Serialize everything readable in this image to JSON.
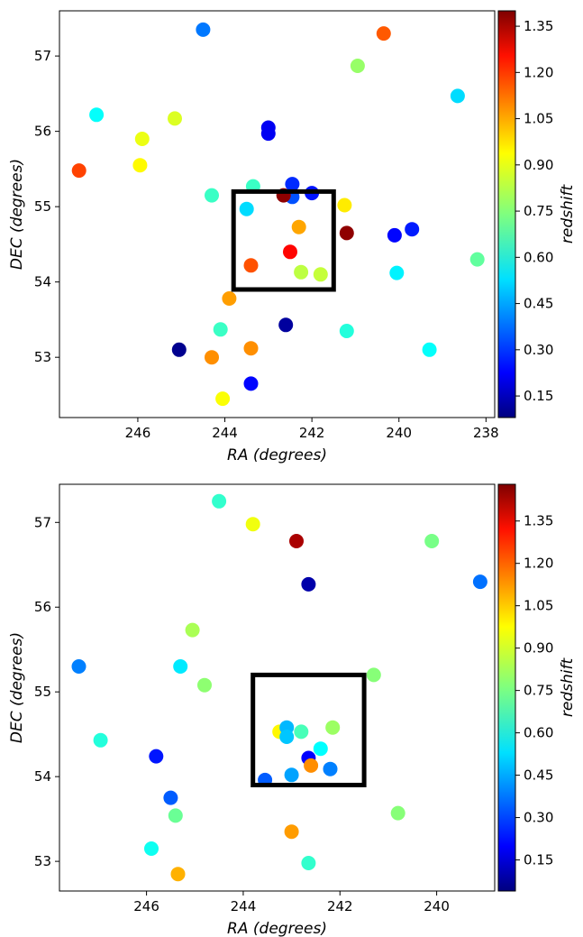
{
  "chart_data": [
    {
      "type": "scatter",
      "xlabel_var": "RA",
      "xlabel_unit": "(degrees)",
      "ylabel_var": "DEC",
      "ylabel_unit": "(degrees)",
      "colorbar_label": "redshift",
      "colormap": "jet",
      "clim": [
        0.08,
        1.4
      ],
      "colorbar_ticks": [
        "0.15",
        "0.30",
        "0.45",
        "0.60",
        "0.75",
        "0.90",
        "1.05",
        "1.20",
        "1.35"
      ],
      "xlim": [
        247.8,
        237.8
      ],
      "ylim": [
        52.2,
        57.6
      ],
      "x_ticks": [
        "246",
        "244",
        "242",
        "240",
        "238"
      ],
      "y_ticks": [
        "53",
        "54",
        "55",
        "56",
        "57"
      ],
      "grid": false,
      "box": {
        "ra": [
          241.5,
          243.8
        ],
        "dec": [
          53.9,
          55.2
        ]
      },
      "points": [
        {
          "ra": 244.5,
          "dec": 57.35,
          "z": 0.4
        },
        {
          "ra": 240.35,
          "dec": 57.3,
          "z": 1.12
        },
        {
          "ra": 240.95,
          "dec": 56.87,
          "z": 0.77
        },
        {
          "ra": 238.65,
          "dec": 56.47,
          "z": 0.53
        },
        {
          "ra": 246.95,
          "dec": 56.22,
          "z": 0.58
        },
        {
          "ra": 245.15,
          "dec": 56.17,
          "z": 0.86
        },
        {
          "ra": 245.9,
          "dec": 55.9,
          "z": 0.88
        },
        {
          "ra": 243.0,
          "dec": 56.05,
          "z": 0.23
        },
        {
          "ra": 243.0,
          "dec": 55.97,
          "z": 0.23
        },
        {
          "ra": 245.95,
          "dec": 55.55,
          "z": 0.91
        },
        {
          "ra": 247.35,
          "dec": 55.48,
          "z": 1.15
        },
        {
          "ra": 244.3,
          "dec": 55.15,
          "z": 0.65
        },
        {
          "ra": 243.35,
          "dec": 55.27,
          "z": 0.65
        },
        {
          "ra": 242.45,
          "dec": 55.3,
          "z": 0.3
        },
        {
          "ra": 242.45,
          "dec": 55.13,
          "z": 0.35
        },
        {
          "ra": 242.65,
          "dec": 55.15,
          "z": 1.38
        },
        {
          "ra": 242.0,
          "dec": 55.18,
          "z": 0.27
        },
        {
          "ra": 243.5,
          "dec": 54.97,
          "z": 0.53
        },
        {
          "ra": 242.3,
          "dec": 54.73,
          "z": 1.02
        },
        {
          "ra": 241.25,
          "dec": 55.02,
          "z": 0.93
        },
        {
          "ra": 241.2,
          "dec": 54.65,
          "z": 1.38
        },
        {
          "ra": 240.1,
          "dec": 54.62,
          "z": 0.25
        },
        {
          "ra": 239.7,
          "dec": 54.7,
          "z": 0.28
        },
        {
          "ra": 242.5,
          "dec": 54.4,
          "z": 1.23
        },
        {
          "ra": 243.4,
          "dec": 54.22,
          "z": 1.13
        },
        {
          "ra": 242.25,
          "dec": 54.13,
          "z": 0.82
        },
        {
          "ra": 241.8,
          "dec": 54.1,
          "z": 0.83
        },
        {
          "ra": 240.05,
          "dec": 54.12,
          "z": 0.56
        },
        {
          "ra": 238.2,
          "dec": 54.3,
          "z": 0.7
        },
        {
          "ra": 243.9,
          "dec": 53.78,
          "z": 1.03
        },
        {
          "ra": 244.1,
          "dec": 53.37,
          "z": 0.65
        },
        {
          "ra": 242.6,
          "dec": 53.43,
          "z": 0.12
        },
        {
          "ra": 241.2,
          "dec": 53.35,
          "z": 0.62
        },
        {
          "ra": 245.05,
          "dec": 53.1,
          "z": 0.1
        },
        {
          "ra": 243.4,
          "dec": 53.12,
          "z": 1.05
        },
        {
          "ra": 239.3,
          "dec": 53.1,
          "z": 0.58
        },
        {
          "ra": 244.3,
          "dec": 53.0,
          "z": 1.05
        },
        {
          "ra": 243.4,
          "dec": 52.65,
          "z": 0.25
        },
        {
          "ra": 244.05,
          "dec": 52.45,
          "z": 0.9
        }
      ]
    },
    {
      "type": "scatter",
      "xlabel_var": "RA",
      "xlabel_unit": "(degrees)",
      "ylabel_var": "DEC",
      "ylabel_unit": "(degrees)",
      "colorbar_label": "redshift",
      "colormap": "jet",
      "clim": [
        0.04,
        1.48
      ],
      "colorbar_ticks": [
        "0.15",
        "0.30",
        "0.45",
        "0.60",
        "0.75",
        "0.90",
        "1.05",
        "1.20",
        "1.35"
      ],
      "xlim": [
        247.8,
        238.8
      ],
      "ylim": [
        52.65,
        57.45
      ],
      "x_ticks": [
        "246",
        "244",
        "242",
        "240"
      ],
      "y_ticks": [
        "53",
        "54",
        "55",
        "56",
        "57"
      ],
      "grid": false,
      "box": {
        "ra": [
          241.5,
          243.8
        ],
        "dec": [
          53.9,
          55.2
        ]
      },
      "points": [
        {
          "ra": 244.5,
          "dec": 57.25,
          "z": 0.65
        },
        {
          "ra": 243.8,
          "dec": 56.98,
          "z": 0.92
        },
        {
          "ra": 242.9,
          "dec": 56.78,
          "z": 1.42
        },
        {
          "ra": 240.1,
          "dec": 56.78,
          "z": 0.75
        },
        {
          "ra": 239.1,
          "dec": 56.3,
          "z": 0.38
        },
        {
          "ra": 242.65,
          "dec": 56.27,
          "z": 0.1
        },
        {
          "ra": 245.05,
          "dec": 55.73,
          "z": 0.82
        },
        {
          "ra": 247.4,
          "dec": 55.3,
          "z": 0.4
        },
        {
          "ra": 245.3,
          "dec": 55.3,
          "z": 0.55
        },
        {
          "ra": 244.8,
          "dec": 55.08,
          "z": 0.78
        },
        {
          "ra": 241.3,
          "dec": 55.2,
          "z": 0.77
        },
        {
          "ra": 246.95,
          "dec": 54.43,
          "z": 0.63
        },
        {
          "ra": 243.25,
          "dec": 54.53,
          "z": 0.95
        },
        {
          "ra": 243.1,
          "dec": 54.58,
          "z": 0.48
        },
        {
          "ra": 243.1,
          "dec": 54.47,
          "z": 0.5
        },
        {
          "ra": 242.8,
          "dec": 54.53,
          "z": 0.68
        },
        {
          "ra": 242.15,
          "dec": 54.58,
          "z": 0.8
        },
        {
          "ra": 242.4,
          "dec": 54.33,
          "z": 0.58
        },
        {
          "ra": 245.8,
          "dec": 54.24,
          "z": 0.25
        },
        {
          "ra": 242.65,
          "dec": 54.22,
          "z": 0.22
        },
        {
          "ra": 242.6,
          "dec": 54.13,
          "z": 1.1
        },
        {
          "ra": 242.2,
          "dec": 54.09,
          "z": 0.4
        },
        {
          "ra": 243.0,
          "dec": 54.02,
          "z": 0.45
        },
        {
          "ra": 243.55,
          "dec": 53.96,
          "z": 0.35
        },
        {
          "ra": 245.5,
          "dec": 53.75,
          "z": 0.35
        },
        {
          "ra": 245.4,
          "dec": 53.54,
          "z": 0.73
        },
        {
          "ra": 240.8,
          "dec": 53.57,
          "z": 0.77
        },
        {
          "ra": 243.0,
          "dec": 53.35,
          "z": 1.08
        },
        {
          "ra": 245.9,
          "dec": 53.15,
          "z": 0.6
        },
        {
          "ra": 242.65,
          "dec": 52.98,
          "z": 0.65
        },
        {
          "ra": 245.35,
          "dec": 52.85,
          "z": 1.05
        }
      ]
    }
  ]
}
